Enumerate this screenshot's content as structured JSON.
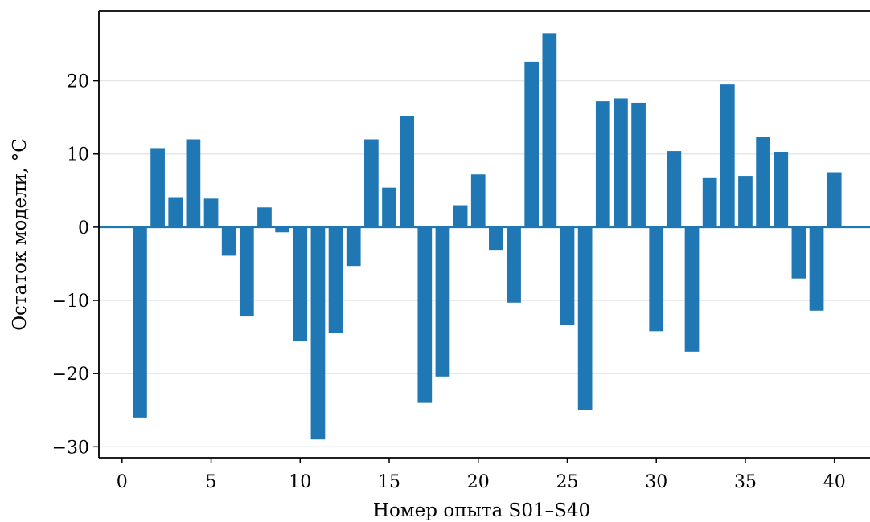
{
  "colors": {
    "bar": "#1f77b4",
    "grid": "#e6e6e6",
    "axis": "#000000",
    "zero_line": "#1f77b4"
  },
  "chart_data": {
    "type": "bar",
    "title": "",
    "xlabel": "Номер опыта S01–S40",
    "ylabel": "Остаток модели, °C",
    "xlim": [
      -1.3,
      42
    ],
    "ylim": [
      -31.5,
      29.5
    ],
    "xticks": [
      0,
      5,
      10,
      15,
      20,
      25,
      30,
      35,
      40
    ],
    "xtick_labels": [
      "0",
      "5",
      "10",
      "15",
      "20",
      "25",
      "30",
      "35",
      "40"
    ],
    "yticks": [
      -30,
      -20,
      -10,
      0,
      10,
      20
    ],
    "ytick_labels": [
      "−30",
      "−20",
      "−10",
      "0",
      "10",
      "20"
    ],
    "grid": "horizontal",
    "zero_line": true,
    "legend": "none",
    "x": [
      1,
      2,
      3,
      4,
      5,
      6,
      7,
      8,
      9,
      10,
      11,
      12,
      13,
      14,
      15,
      16,
      17,
      18,
      19,
      20,
      21,
      22,
      23,
      24,
      25,
      26,
      27,
      28,
      29,
      30,
      31,
      32,
      33,
      34,
      35,
      36,
      37,
      38,
      39,
      40
    ],
    "values": [
      -26.0,
      10.8,
      4.1,
      12.0,
      3.9,
      -3.9,
      -12.2,
      2.7,
      -0.7,
      -15.6,
      -29.0,
      -14.5,
      -5.3,
      12.0,
      5.4,
      15.2,
      -24.0,
      -20.4,
      3.0,
      7.2,
      -3.1,
      -10.3,
      22.6,
      26.5,
      -13.4,
      -25.0,
      17.2,
      17.6,
      17.0,
      -14.2,
      10.4,
      -17.0,
      6.7,
      19.5,
      7.0,
      12.3,
      10.3,
      -7.0,
      -11.4,
      7.5
    ]
  }
}
